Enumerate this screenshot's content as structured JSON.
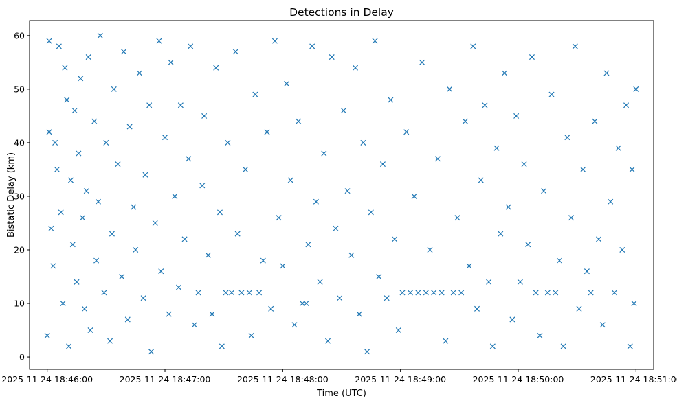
{
  "chart_data": {
    "type": "scatter",
    "title": "Detections in Delay",
    "xlabel": "Time (UTC)",
    "ylabel": "Bistatic Delay (km)",
    "x_axis_type": "time",
    "xlim": [
      "2025-11-24 18:45:51",
      "2025-11-24 18:51:09"
    ],
    "ylim": [
      -2.3,
      62.8
    ],
    "x_ticks": [
      "2025-11-24 18:46:00",
      "2025-11-24 18:47:00",
      "2025-11-24 18:48:00",
      "2025-11-24 18:49:00",
      "2025-11-24 18:50:00",
      "2025-11-24 18:51:00"
    ],
    "y_ticks": [
      0,
      10,
      20,
      30,
      40,
      50,
      60
    ],
    "marker": "x",
    "color": "#1f77b4",
    "grid": false,
    "series": [
      {
        "points": [
          [
            "2025-11-24 18:46:00",
            4
          ],
          [
            "2025-11-24 18:46:01",
            42
          ],
          [
            "2025-11-24 18:46:01",
            59
          ],
          [
            "2025-11-24 18:46:02",
            24
          ],
          [
            "2025-11-24 18:46:03",
            17
          ],
          [
            "2025-11-24 18:46:04",
            40
          ],
          [
            "2025-11-24 18:46:05",
            35
          ],
          [
            "2025-11-24 18:46:06",
            58
          ],
          [
            "2025-11-24 18:46:07",
            27
          ],
          [
            "2025-11-24 18:46:08",
            10
          ],
          [
            "2025-11-24 18:46:09",
            54
          ],
          [
            "2025-11-24 18:46:10",
            48
          ],
          [
            "2025-11-24 18:46:11",
            2
          ],
          [
            "2025-11-24 18:46:12",
            33
          ],
          [
            "2025-11-24 18:46:13",
            21
          ],
          [
            "2025-11-24 18:46:14",
            46
          ],
          [
            "2025-11-24 18:46:15",
            14
          ],
          [
            "2025-11-24 18:46:16",
            38
          ],
          [
            "2025-11-24 18:46:17",
            52
          ],
          [
            "2025-11-24 18:46:18",
            26
          ],
          [
            "2025-11-24 18:46:19",
            9
          ],
          [
            "2025-11-24 18:46:20",
            31
          ],
          [
            "2025-11-24 18:46:21",
            56
          ],
          [
            "2025-11-24 18:46:22",
            5
          ],
          [
            "2025-11-24 18:46:24",
            44
          ],
          [
            "2025-11-24 18:46:25",
            18
          ],
          [
            "2025-11-24 18:46:26",
            29
          ],
          [
            "2025-11-24 18:46:27",
            60
          ],
          [
            "2025-11-24 18:46:29",
            12
          ],
          [
            "2025-11-24 18:46:30",
            40
          ],
          [
            "2025-11-24 18:46:32",
            3
          ],
          [
            "2025-11-24 18:46:33",
            23
          ],
          [
            "2025-11-24 18:46:34",
            50
          ],
          [
            "2025-11-24 18:46:36",
            36
          ],
          [
            "2025-11-24 18:46:38",
            15
          ],
          [
            "2025-11-24 18:46:39",
            57
          ],
          [
            "2025-11-24 18:46:41",
            7
          ],
          [
            "2025-11-24 18:46:42",
            43
          ],
          [
            "2025-11-24 18:46:44",
            28
          ],
          [
            "2025-11-24 18:46:45",
            20
          ],
          [
            "2025-11-24 18:46:47",
            53
          ],
          [
            "2025-11-24 18:46:49",
            11
          ],
          [
            "2025-11-24 18:46:50",
            34
          ],
          [
            "2025-11-24 18:46:52",
            47
          ],
          [
            "2025-11-24 18:46:53",
            1
          ],
          [
            "2025-11-24 18:46:55",
            25
          ],
          [
            "2025-11-24 18:46:57",
            59
          ],
          [
            "2025-11-24 18:46:58",
            16
          ],
          [
            "2025-11-24 18:47:00",
            41
          ],
          [
            "2025-11-24 18:47:02",
            8
          ],
          [
            "2025-11-24 18:47:03",
            55
          ],
          [
            "2025-11-24 18:47:05",
            30
          ],
          [
            "2025-11-24 18:47:07",
            13
          ],
          [
            "2025-11-24 18:47:08",
            47
          ],
          [
            "2025-11-24 18:47:10",
            22
          ],
          [
            "2025-11-24 18:47:12",
            37
          ],
          [
            "2025-11-24 18:47:13",
            58
          ],
          [
            "2025-11-24 18:47:15",
            6
          ],
          [
            "2025-11-24 18:47:17",
            12
          ],
          [
            "2025-11-24 18:47:19",
            32
          ],
          [
            "2025-11-24 18:47:20",
            45
          ],
          [
            "2025-11-24 18:47:22",
            19
          ],
          [
            "2025-11-24 18:47:24",
            8
          ],
          [
            "2025-11-24 18:47:26",
            54
          ],
          [
            "2025-11-24 18:47:28",
            27
          ],
          [
            "2025-11-24 18:47:29",
            2
          ],
          [
            "2025-11-24 18:47:31",
            12
          ],
          [
            "2025-11-24 18:47:32",
            40
          ],
          [
            "2025-11-24 18:47:34",
            12
          ],
          [
            "2025-11-24 18:47:36",
            57
          ],
          [
            "2025-11-24 18:47:37",
            23
          ],
          [
            "2025-11-24 18:47:39",
            12
          ],
          [
            "2025-11-24 18:47:41",
            35
          ],
          [
            "2025-11-24 18:47:43",
            12
          ],
          [
            "2025-11-24 18:47:44",
            4
          ],
          [
            "2025-11-24 18:47:46",
            49
          ],
          [
            "2025-11-24 18:47:48",
            12
          ],
          [
            "2025-11-24 18:47:50",
            18
          ],
          [
            "2025-11-24 18:47:52",
            42
          ],
          [
            "2025-11-24 18:47:54",
            9
          ],
          [
            "2025-11-24 18:47:56",
            59
          ],
          [
            "2025-11-24 18:47:58",
            26
          ],
          [
            "2025-11-24 18:48:00",
            17
          ],
          [
            "2025-11-24 18:48:02",
            51
          ],
          [
            "2025-11-24 18:48:04",
            33
          ],
          [
            "2025-11-24 18:48:06",
            6
          ],
          [
            "2025-11-24 18:48:08",
            44
          ],
          [
            "2025-11-24 18:48:10",
            10
          ],
          [
            "2025-11-24 18:48:12",
            10
          ],
          [
            "2025-11-24 18:48:13",
            21
          ],
          [
            "2025-11-24 18:48:15",
            58
          ],
          [
            "2025-11-24 18:48:17",
            29
          ],
          [
            "2025-11-24 18:48:19",
            14
          ],
          [
            "2025-11-24 18:48:21",
            38
          ],
          [
            "2025-11-24 18:48:23",
            3
          ],
          [
            "2025-11-24 18:48:25",
            56
          ],
          [
            "2025-11-24 18:48:27",
            24
          ],
          [
            "2025-11-24 18:48:29",
            11
          ],
          [
            "2025-11-24 18:48:31",
            46
          ],
          [
            "2025-11-24 18:48:33",
            31
          ],
          [
            "2025-11-24 18:48:35",
            19
          ],
          [
            "2025-11-24 18:48:37",
            54
          ],
          [
            "2025-11-24 18:48:39",
            8
          ],
          [
            "2025-11-24 18:48:41",
            40
          ],
          [
            "2025-11-24 18:48:43",
            1
          ],
          [
            "2025-11-24 18:48:45",
            27
          ],
          [
            "2025-11-24 18:48:47",
            59
          ],
          [
            "2025-11-24 18:48:49",
            15
          ],
          [
            "2025-11-24 18:48:51",
            36
          ],
          [
            "2025-11-24 18:48:53",
            11
          ],
          [
            "2025-11-24 18:48:55",
            48
          ],
          [
            "2025-11-24 18:48:57",
            22
          ],
          [
            "2025-11-24 18:48:59",
            5
          ],
          [
            "2025-11-24 18:49:01",
            12
          ],
          [
            "2025-11-24 18:49:03",
            42
          ],
          [
            "2025-11-24 18:49:05",
            12
          ],
          [
            "2025-11-24 18:49:07",
            30
          ],
          [
            "2025-11-24 18:49:09",
            12
          ],
          [
            "2025-11-24 18:49:11",
            55
          ],
          [
            "2025-11-24 18:49:13",
            12
          ],
          [
            "2025-11-24 18:49:15",
            20
          ],
          [
            "2025-11-24 18:49:17",
            12
          ],
          [
            "2025-11-24 18:49:19",
            37
          ],
          [
            "2025-11-24 18:49:21",
            12
          ],
          [
            "2025-11-24 18:49:23",
            3
          ],
          [
            "2025-11-24 18:49:25",
            50
          ],
          [
            "2025-11-24 18:49:27",
            12
          ],
          [
            "2025-11-24 18:49:29",
            26
          ],
          [
            "2025-11-24 18:49:31",
            12
          ],
          [
            "2025-11-24 18:49:33",
            44
          ],
          [
            "2025-11-24 18:49:35",
            17
          ],
          [
            "2025-11-24 18:49:37",
            58
          ],
          [
            "2025-11-24 18:49:39",
            9
          ],
          [
            "2025-11-24 18:49:41",
            33
          ],
          [
            "2025-11-24 18:49:43",
            47
          ],
          [
            "2025-11-24 18:49:45",
            14
          ],
          [
            "2025-11-24 18:49:47",
            2
          ],
          [
            "2025-11-24 18:49:49",
            39
          ],
          [
            "2025-11-24 18:49:51",
            23
          ],
          [
            "2025-11-24 18:49:53",
            53
          ],
          [
            "2025-11-24 18:49:55",
            28
          ],
          [
            "2025-11-24 18:49:57",
            7
          ],
          [
            "2025-11-24 18:49:59",
            45
          ],
          [
            "2025-11-24 18:50:01",
            14
          ],
          [
            "2025-11-24 18:50:03",
            36
          ],
          [
            "2025-11-24 18:50:05",
            21
          ],
          [
            "2025-11-24 18:50:07",
            56
          ],
          [
            "2025-11-24 18:50:09",
            12
          ],
          [
            "2025-11-24 18:50:11",
            4
          ],
          [
            "2025-11-24 18:50:13",
            31
          ],
          [
            "2025-11-24 18:50:15",
            12
          ],
          [
            "2025-11-24 18:50:17",
            49
          ],
          [
            "2025-11-24 18:50:19",
            12
          ],
          [
            "2025-11-24 18:50:21",
            18
          ],
          [
            "2025-11-24 18:50:23",
            2
          ],
          [
            "2025-11-24 18:50:25",
            41
          ],
          [
            "2025-11-24 18:50:27",
            26
          ],
          [
            "2025-11-24 18:50:29",
            58
          ],
          [
            "2025-11-24 18:50:31",
            9
          ],
          [
            "2025-11-24 18:50:33",
            35
          ],
          [
            "2025-11-24 18:50:35",
            16
          ],
          [
            "2025-11-24 18:50:37",
            12
          ],
          [
            "2025-11-24 18:50:39",
            44
          ],
          [
            "2025-11-24 18:50:41",
            22
          ],
          [
            "2025-11-24 18:50:43",
            6
          ],
          [
            "2025-11-24 18:50:45",
            53
          ],
          [
            "2025-11-24 18:50:47",
            29
          ],
          [
            "2025-11-24 18:50:49",
            12
          ],
          [
            "2025-11-24 18:50:51",
            39
          ],
          [
            "2025-11-24 18:50:53",
            20
          ],
          [
            "2025-11-24 18:50:55",
            47
          ],
          [
            "2025-11-24 18:50:57",
            2
          ],
          [
            "2025-11-24 18:50:58",
            35
          ],
          [
            "2025-11-24 18:50:59",
            10
          ],
          [
            "2025-11-24 18:51:00",
            50
          ]
        ]
      }
    ]
  }
}
